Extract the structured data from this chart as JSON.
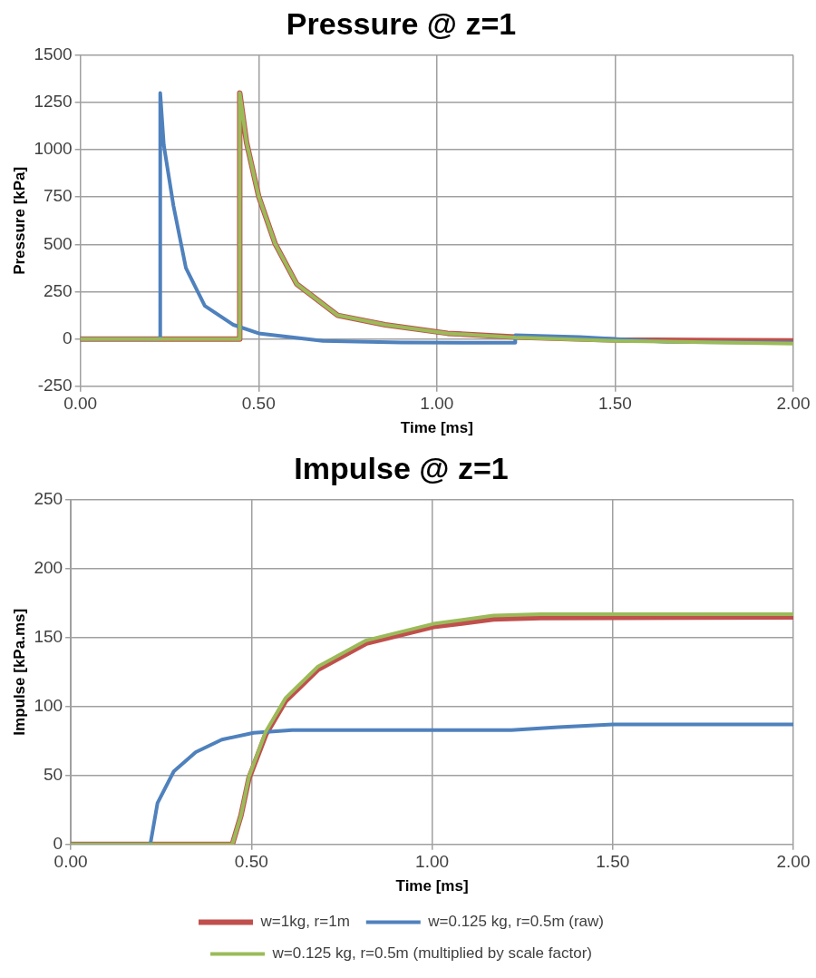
{
  "chart_data": [
    {
      "type": "line",
      "title": "Pressure @ z=1",
      "xlabel": "Time [ms]",
      "ylabel": "Pressure [kPa]",
      "xlim": [
        0,
        2
      ],
      "xticks": [
        {
          "value": 0,
          "label": "0.00"
        },
        {
          "value": 0.5,
          "label": "0.50"
        },
        {
          "value": 1,
          "label": "1.00"
        },
        {
          "value": 1.5,
          "label": "1.50"
        },
        {
          "value": 2,
          "label": "2.00"
        }
      ],
      "ylim": [
        -250,
        1500
      ],
      "yticks": [
        -250,
        0,
        250,
        500,
        750,
        1000,
        1250,
        1500
      ],
      "grid": true,
      "legend": false,
      "series": [
        {
          "color": "#c0504d",
          "x": [
            0,
            0.447,
            0.447,
            0.466,
            0.5,
            0.546,
            0.607,
            0.722,
            0.855,
            1.03,
            1.22,
            1.5,
            2.0
          ],
          "values": [
            0,
            0,
            1300,
            1040,
            755,
            505,
            290,
            125,
            75,
            30,
            10,
            -5,
            -10
          ]
        },
        {
          "color": "#4f81bd",
          "x": [
            0,
            0.224,
            0.224,
            0.234,
            0.261,
            0.296,
            0.349,
            0.429,
            0.5,
            0.68,
            0.9,
            1.22,
            1.22,
            1.4,
            1.645,
            2.0
          ],
          "values": [
            0,
            0,
            1300,
            1025,
            705,
            375,
            175,
            75,
            30,
            -10,
            -18,
            -20,
            20,
            10,
            -15,
            -20
          ]
        },
        {
          "color": "#9bbb59",
          "x": [
            0,
            0.447,
            0.447,
            0.466,
            0.5,
            0.546,
            0.607,
            0.722,
            0.855,
            1.03,
            1.22,
            1.5,
            2.0
          ],
          "values": [
            0,
            0,
            1300,
            1040,
            755,
            505,
            290,
            125,
            75,
            30,
            8,
            -10,
            -25
          ]
        }
      ]
    },
    {
      "type": "line",
      "title": "Impulse @ z=1",
      "xlabel": "Time [ms]",
      "ylabel": "Impulse [kPa.ms]",
      "xlim": [
        0,
        2
      ],
      "xticks": [
        {
          "value": 0,
          "label": "0.00"
        },
        {
          "value": 0.5,
          "label": "0.50"
        },
        {
          "value": 1,
          "label": "1.00"
        },
        {
          "value": 1.5,
          "label": "1.50"
        },
        {
          "value": 2,
          "label": "2.00"
        }
      ],
      "ylim": [
        0,
        250
      ],
      "yticks": [
        0,
        50,
        100,
        150,
        200,
        250
      ],
      "grid": true,
      "legend": "bottom",
      "series": [
        {
          "name": "w=1kg, r=1m",
          "color": "#c0504d",
          "x": [
            0,
            0.447,
            0.471,
            0.493,
            0.54,
            0.594,
            0.684,
            0.818,
            1.004,
            1.17,
            1.3,
            2.0
          ],
          "values": [
            0,
            0,
            21,
            48,
            80,
            104,
            127,
            146,
            158,
            163.5,
            164.5,
            165
          ]
        },
        {
          "name": "w=0.125 kg, r=0.5m (raw)",
          "color": "#4f81bd",
          "x": [
            0,
            0.22,
            0.24,
            0.285,
            0.346,
            0.418,
            0.506,
            0.613,
            0.75,
            1.22,
            1.35,
            1.5,
            2.0
          ],
          "values": [
            0,
            0,
            30,
            53,
            67,
            76,
            81,
            83,
            83,
            83,
            85,
            87,
            87
          ]
        },
        {
          "name": "w=0.125 kg, r=0.5m (multiplied by scale factor)",
          "color": "#9bbb59",
          "x": [
            0,
            0.447,
            0.471,
            0.493,
            0.54,
            0.594,
            0.684,
            0.818,
            1.004,
            1.17,
            1.3,
            2.0
          ],
          "values": [
            0,
            0,
            21,
            49,
            82,
            106,
            129,
            148,
            160,
            166,
            167,
            167
          ]
        }
      ]
    }
  ]
}
